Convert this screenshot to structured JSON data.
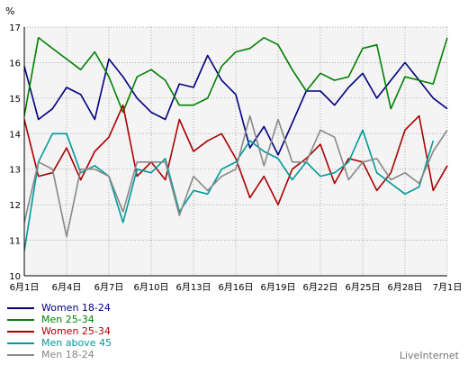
{
  "chart_data": {
    "type": "line",
    "y_unit": "%",
    "ylim": [
      10,
      17
    ],
    "yticks": [
      10,
      11,
      12,
      13,
      14,
      15,
      16,
      17
    ],
    "grid": true,
    "legend_position": "bottom-left",
    "x": [
      "6月1日",
      "6月2日",
      "6月3日",
      "6月4日",
      "6月5日",
      "6月6日",
      "6月7日",
      "6月8日",
      "6月9日",
      "6月10日",
      "6月11日",
      "6月12日",
      "6月13日",
      "6月14日",
      "6月15日",
      "6月16日",
      "6月17日",
      "6月18日",
      "6月19日",
      "6月20日",
      "6月21日",
      "6月22日",
      "6月23日",
      "6月24日",
      "6月25日",
      "6月26日",
      "6月27日",
      "6月28日",
      "6月29日",
      "6月30日",
      "7月1日"
    ],
    "xtick_labels": [
      "6月1日",
      "6月4日",
      "6月7日",
      "6月10日",
      "6月13日",
      "6月16日",
      "6月19日",
      "6月22日",
      "6月25日",
      "6月28日",
      "7月1日"
    ],
    "series": [
      {
        "name": "Women 18-24",
        "color": "#000080",
        "values": [
          15.9,
          14.4,
          14.7,
          15.3,
          15.1,
          14.4,
          16.1,
          15.6,
          15.0,
          14.6,
          14.4,
          15.4,
          15.3,
          16.2,
          15.5,
          15.1,
          13.6,
          14.2,
          13.4,
          14.3,
          15.2,
          15.2,
          14.8,
          15.3,
          15.7,
          15.0,
          15.5,
          16.0,
          15.5,
          15.0,
          14.7
        ]
      },
      {
        "name": "Men 25-34",
        "color": "#008000",
        "values": [
          14.5,
          16.7,
          16.4,
          16.1,
          15.8,
          16.3,
          15.6,
          14.6,
          15.6,
          15.8,
          15.5,
          14.8,
          14.8,
          15.0,
          15.9,
          16.3,
          16.4,
          16.7,
          16.5,
          15.8,
          15.2,
          15.7,
          15.5,
          15.6,
          16.4,
          16.5,
          14.7,
          15.6,
          15.5,
          15.4,
          16.7
        ]
      },
      {
        "name": "Women 25-34",
        "color": "#aa0000",
        "values": [
          14.4,
          12.8,
          12.9,
          13.6,
          12.7,
          13.5,
          13.9,
          14.8,
          12.8,
          13.2,
          12.7,
          14.4,
          13.5,
          13.8,
          14.0,
          13.3,
          12.2,
          12.8,
          12.0,
          13.0,
          13.3,
          13.7,
          12.6,
          13.3,
          13.2,
          12.4,
          12.9,
          14.1,
          14.5,
          12.4,
          13.1
        ]
      },
      {
        "name": "Men above 45",
        "color": "#009999",
        "values": [
          10.7,
          13.2,
          14.0,
          14.0,
          12.9,
          13.1,
          12.8,
          11.5,
          13.0,
          12.9,
          13.3,
          11.8,
          12.4,
          12.3,
          13.0,
          13.2,
          13.8,
          13.5,
          13.3,
          12.7,
          13.2,
          12.8,
          12.9,
          13.2,
          14.1,
          12.9,
          12.6,
          12.3,
          12.5,
          13.8,
          null
        ]
      },
      {
        "name": "Men 18-24",
        "color": "#888888",
        "values": [
          11.5,
          13.2,
          13.0,
          11.1,
          13.0,
          13.0,
          12.8,
          11.8,
          13.2,
          13.2,
          13.2,
          11.7,
          12.8,
          12.4,
          12.8,
          13.0,
          14.5,
          13.1,
          14.4,
          13.2,
          13.2,
          14.1,
          13.9,
          12.7,
          13.2,
          13.3,
          12.7,
          12.9,
          12.6,
          13.5,
          14.1
        ]
      }
    ]
  },
  "branding": {
    "watermark": "LiveInternet"
  }
}
